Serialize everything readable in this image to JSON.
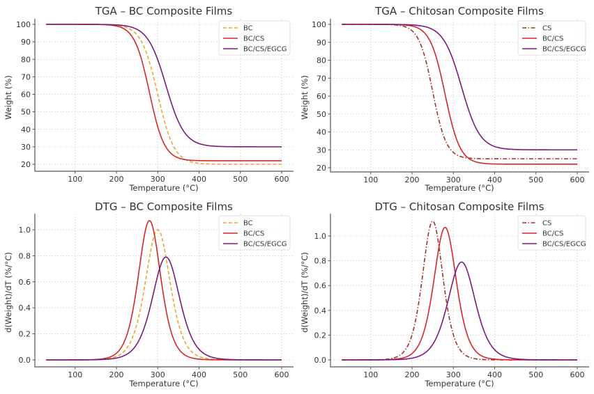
{
  "colors": {
    "BC": "#E9A631",
    "BC/CS": "#D62728",
    "BC/CS/EGCG": "#7A1A7E",
    "CS": "#A0322E"
  },
  "chart_data": [
    {
      "id": "tga-bc",
      "type": "line",
      "title": "TGA – BC Composite Films",
      "xlabel": "Temperature (°C)",
      "ylabel": "Weight (%)",
      "xlim": [
        30,
        600
      ],
      "ylim": [
        20,
        100
      ],
      "xticks": [
        100,
        200,
        300,
        400,
        500,
        600
      ],
      "yticks": [
        20,
        30,
        40,
        50,
        60,
        70,
        80,
        90,
        100
      ],
      "grid": true,
      "legend_position": "top-right",
      "kind": "tga",
      "series": [
        {
          "name": "BC",
          "style": "dashed",
          "onset_midpoint_C": 300,
          "rate": 0.05,
          "residual_pct": 20
        },
        {
          "name": "BC/CS",
          "style": "solid",
          "onset_midpoint_C": 280,
          "rate": 0.055,
          "residual_pct": 22
        },
        {
          "name": "BC/CS/EGCG",
          "style": "solid",
          "onset_midpoint_C": 320,
          "rate": 0.045,
          "residual_pct": 30
        }
      ]
    },
    {
      "id": "tga-cs",
      "type": "line",
      "title": "TGA – Chitosan Composite Films",
      "xlabel": "Temperature (°C)",
      "ylabel": "Weight (%)",
      "xlim": [
        30,
        600
      ],
      "ylim": [
        20,
        100
      ],
      "xticks": [
        100,
        200,
        300,
        400,
        500,
        600
      ],
      "yticks": [
        20,
        30,
        40,
        50,
        60,
        70,
        80,
        90,
        100
      ],
      "grid": true,
      "legend_position": "top-right",
      "kind": "tga",
      "series": [
        {
          "name": "CS",
          "style": "dashdot",
          "onset_midpoint_C": 250,
          "rate": 0.06,
          "residual_pct": 25
        },
        {
          "name": "BC/CS",
          "style": "solid",
          "onset_midpoint_C": 280,
          "rate": 0.055,
          "residual_pct": 22
        },
        {
          "name": "BC/CS/EGCG",
          "style": "solid",
          "onset_midpoint_C": 320,
          "rate": 0.045,
          "residual_pct": 30
        }
      ]
    },
    {
      "id": "dtg-bc",
      "type": "line",
      "title": "DTG – BC Composite Films",
      "xlabel": "Temperature (°C)",
      "ylabel": "d(Weight)/dT (%/°C)",
      "xlim": [
        30,
        600
      ],
      "ylim": [
        0,
        1.07
      ],
      "xticks": [
        100,
        200,
        300,
        400,
        500,
        600
      ],
      "yticks": [
        0.0,
        0.2,
        0.4,
        0.6,
        0.8,
        1.0
      ],
      "ytick_format": 1,
      "grid": true,
      "legend_position": "top-right",
      "kind": "dtg",
      "series": [
        {
          "name": "BC",
          "style": "dashed",
          "onset_midpoint_C": 300,
          "rate": 0.05,
          "residual_pct": 20,
          "peak": 1.0
        },
        {
          "name": "BC/CS",
          "style": "solid",
          "onset_midpoint_C": 280,
          "rate": 0.055,
          "residual_pct": 22,
          "peak": 1.07
        },
        {
          "name": "BC/CS/EGCG",
          "style": "solid",
          "onset_midpoint_C": 320,
          "rate": 0.045,
          "residual_pct": 30,
          "peak": 0.79
        }
      ]
    },
    {
      "id": "dtg-cs",
      "type": "line",
      "title": "DTG – Chitosan Composite Films",
      "xlabel": "Temperature (°C)",
      "ylabel": "d(Weight)/dT (%/°C)",
      "xlim": [
        30,
        600
      ],
      "ylim": [
        0,
        1.12
      ],
      "xticks": [
        100,
        200,
        300,
        400,
        500,
        600
      ],
      "yticks": [
        0.0,
        0.2,
        0.4,
        0.6,
        0.8,
        1.0
      ],
      "ytick_format": 1,
      "grid": true,
      "legend_position": "top-right",
      "kind": "dtg",
      "series": [
        {
          "name": "CS",
          "style": "dashdot",
          "onset_midpoint_C": 250,
          "rate": 0.06,
          "residual_pct": 25,
          "peak": 1.12
        },
        {
          "name": "BC/CS",
          "style": "solid",
          "onset_midpoint_C": 280,
          "rate": 0.055,
          "residual_pct": 22,
          "peak": 1.07
        },
        {
          "name": "BC/CS/EGCG",
          "style": "solid",
          "onset_midpoint_C": 320,
          "rate": 0.045,
          "residual_pct": 30,
          "peak": 0.79
        }
      ]
    }
  ]
}
